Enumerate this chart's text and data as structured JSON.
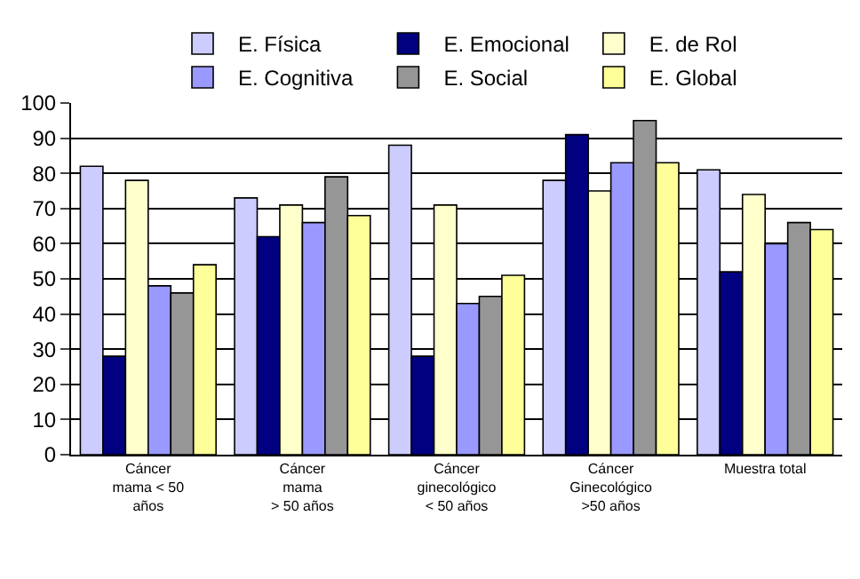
{
  "chart_data": {
    "type": "bar",
    "categories": [
      "Cáncer\nmama < 50\naños",
      "Cáncer\nmama\n> 50 años",
      "Cáncer\nginecológico\n< 50 años",
      "Cáncer\nGinecológico\n>50 años",
      "Muestra total"
    ],
    "series": [
      {
        "name": "E. Física",
        "color": "#ccccff",
        "values": [
          82,
          73,
          88,
          78,
          81
        ]
      },
      {
        "name": "E. Emocional",
        "color": "#000080",
        "values": [
          28,
          62,
          28,
          91,
          52
        ]
      },
      {
        "name": "E. de Rol",
        "color": "#ffffcc",
        "values": [
          78,
          71,
          71,
          75,
          74
        ]
      },
      {
        "name": "E. Cognitiva",
        "color": "#9999ff",
        "values": [
          48,
          66,
          43,
          83,
          60
        ]
      },
      {
        "name": "E. Social",
        "color": "#969696",
        "values": [
          46,
          79,
          45,
          95,
          66
        ]
      },
      {
        "name": "E. Global",
        "color": "#ffff99",
        "values": [
          54,
          68,
          51,
          83,
          64
        ]
      }
    ],
    "ylim": [
      0,
      100
    ],
    "yticks": [
      0,
      10,
      20,
      30,
      40,
      50,
      60,
      70,
      80,
      90,
      100
    ],
    "grid": "y",
    "legend": "top"
  }
}
